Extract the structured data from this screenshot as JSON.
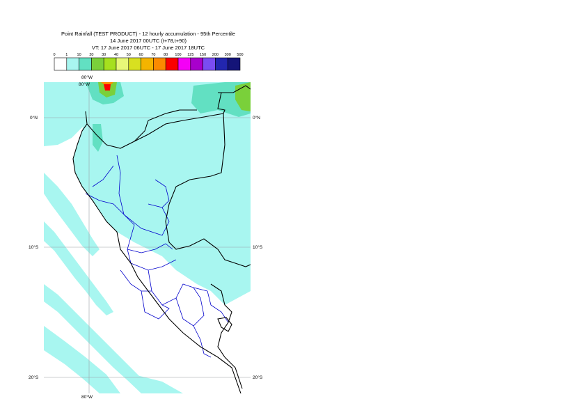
{
  "title": {
    "line1": "Point Rainfall (TEST PRODUCT) - 12 hourly accumulation - 95th Percentile",
    "line2": "14 June 2017 00UTC (t+78,t+90)",
    "line3": "VT: 17 June 2017 06UTC - 17 June 2017 18UTC"
  },
  "legend": {
    "ticks": [
      "0",
      "1",
      "10",
      "20",
      "30",
      "40",
      "50",
      "60",
      "70",
      "80",
      "100",
      "125",
      "150",
      "200",
      "300",
      "500"
    ],
    "colors": [
      "#ffffff",
      "#a8f6f0",
      "#62e0c2",
      "#7ad03a",
      "#a6e01e",
      "#e8f878",
      "#d8e020",
      "#f4b400",
      "#fb8a00",
      "#fa0000",
      "#f400f6",
      "#a800cc",
      "#7a4cf2",
      "#2226ae",
      "#141478"
    ]
  },
  "map": {
    "coords": {
      "lon_top": "80°W",
      "lon_bottom": "80°W",
      "lat0_left": "0°N",
      "lat0_right": "0°N",
      "lat10_left": "10°S",
      "lat10_right": "10°S",
      "lat20_left": "20°S",
      "lat20_right": "20°S"
    },
    "colors": {
      "ocean": "#ffffff",
      "rain_light": "#a8f6f0",
      "rain_moderate": "#62e0c2",
      "rain_heavy": "#7ad03a",
      "rain_intense": "#fa0000",
      "coastline": "#000000",
      "internal_borders": "#0000cc",
      "gridlines": "#9aa0a6"
    }
  }
}
